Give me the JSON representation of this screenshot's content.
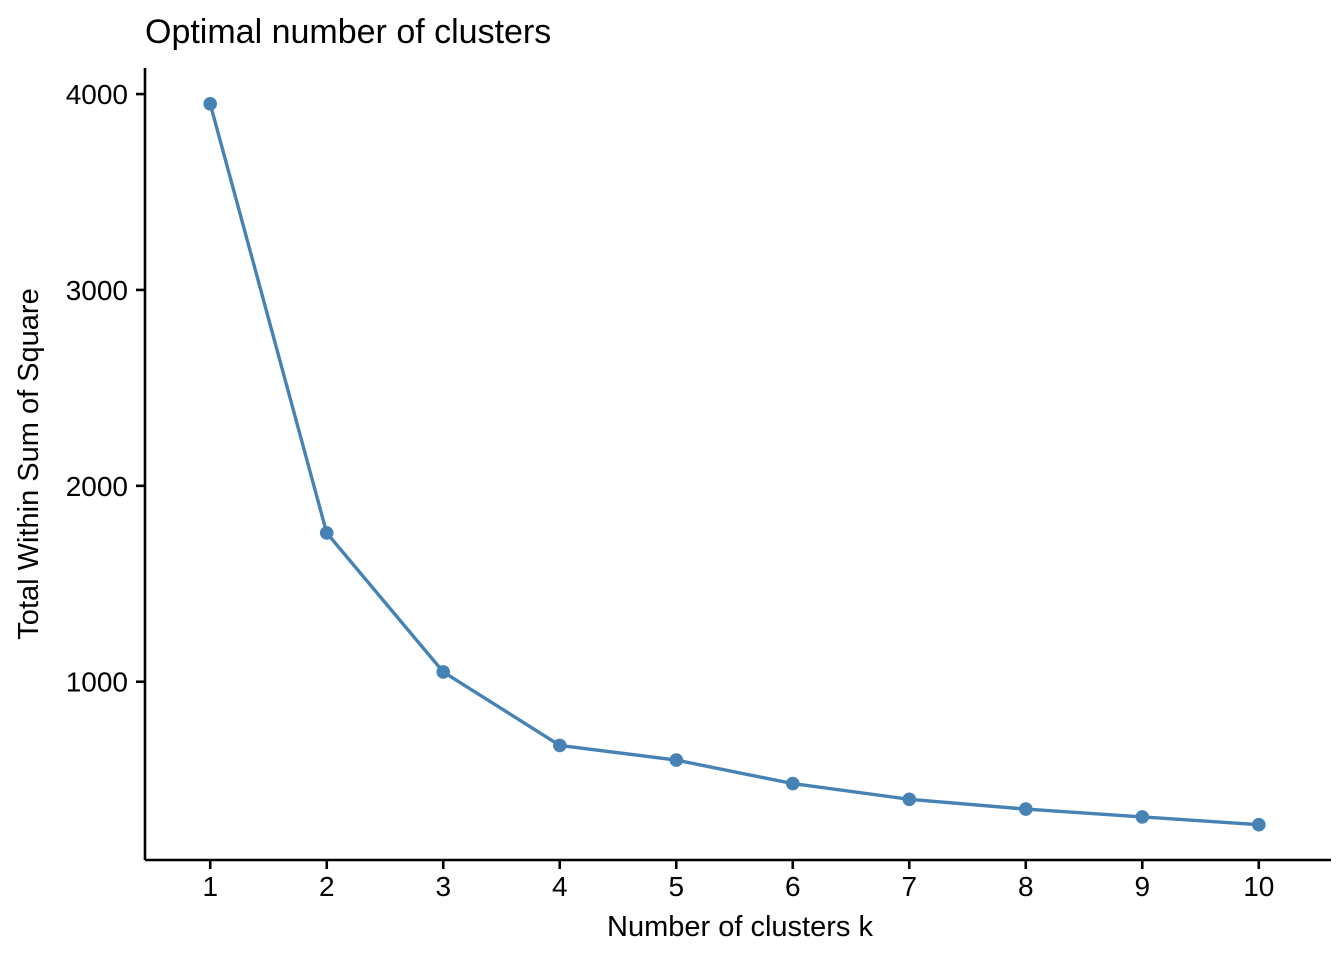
{
  "chart_data": {
    "type": "line",
    "title": "Optimal number of clusters",
    "xlabel": "Number of clusters k",
    "ylabel": "Total Within Sum of Square",
    "x": [
      1,
      2,
      3,
      4,
      5,
      6,
      7,
      8,
      9,
      10
    ],
    "series": [
      {
        "name": "Total within sum of square",
        "values": [
          3950,
          1760,
          1050,
          675,
          600,
          480,
          400,
          350,
          310,
          270
        ]
      }
    ],
    "x_tick_labels": [
      "1",
      "2",
      "3",
      "4",
      "5",
      "6",
      "7",
      "8",
      "9",
      "10"
    ],
    "y_tick_values": [
      1000,
      2000,
      3000,
      4000
    ],
    "y_tick_labels": [
      "1000",
      "2000",
      "3000",
      "4000"
    ],
    "xlim": [
      0.44,
      10.62
    ],
    "ylim": [
      90,
      4133
    ],
    "grid": false,
    "legend_position": "none",
    "line_color": "#4682B4",
    "point_color": "#4682B4",
    "axis_color": "#000000",
    "text_color": "#000000",
    "background_color": "#FFFFFF"
  }
}
